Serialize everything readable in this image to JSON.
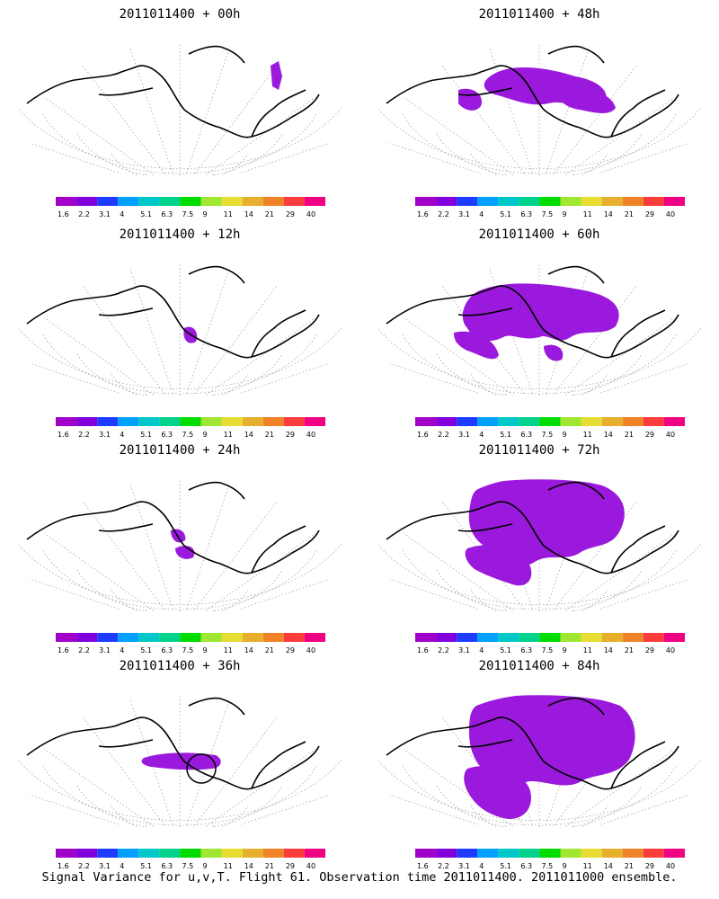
{
  "panels": [
    {
      "title": "2011011400 + 00h",
      "lead": "00h"
    },
    {
      "title": "2011011400 + 48h",
      "lead": "48h"
    },
    {
      "title": "2011011400 + 12h",
      "lead": "12h"
    },
    {
      "title": "2011011400 + 60h",
      "lead": "60h"
    },
    {
      "title": "2011011400 + 24h",
      "lead": "24h"
    },
    {
      "title": "2011011400 + 72h",
      "lead": "72h"
    },
    {
      "title": "2011011400 + 36h",
      "lead": "36h"
    },
    {
      "title": "2011011400 + 84h",
      "lead": "84h"
    }
  ],
  "colorbar": {
    "labels": [
      "1.6",
      "2.2",
      "3.1",
      "4",
      "5.1",
      "6.3",
      "7.5",
      "9",
      "11",
      "14",
      "21",
      "29",
      "40"
    ],
    "colors": [
      "#a000c8",
      "#8200dc",
      "#1e3cff",
      "#00a0ff",
      "#00c8c8",
      "#00d28c",
      "#00dc00",
      "#a0e632",
      "#e6dc32",
      "#e6af2d",
      "#f08228",
      "#fa3c3c",
      "#f00082"
    ]
  },
  "shade_color": "#9a19dc",
  "footer": "Signal Variance for u,v,T. Flight 61. Observation time 2011011400. 2011011000 ensemble."
}
